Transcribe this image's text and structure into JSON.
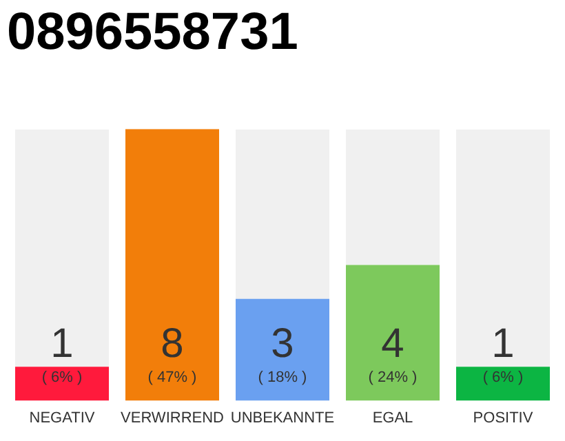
{
  "chart_data": {
    "type": "bar",
    "title": "0896558731",
    "categories": [
      "NEGATIV",
      "VERWIRREND",
      "UNBEKANNTE",
      "EGAL",
      "POSITIV"
    ],
    "values": [
      1,
      8,
      3,
      4,
      1
    ],
    "colors": [
      "#ff1a3c",
      "#f27e0a",
      "#6aa0f0",
      "#7dc95c",
      "#0cb543"
    ],
    "data_labels": true,
    "annotations": [
      {
        "text": "( 6% )",
        "x": "NEGATIV",
        "y": 0
      },
      {
        "text": "( 47% )",
        "x": "VERWIRREND",
        "y": 0
      },
      {
        "text": "( 18% )",
        "x": "UNBEKANNTE",
        "y": 0
      },
      {
        "text": "( 24% )",
        "x": "EGAL",
        "y": 0
      },
      {
        "text": "( 6% )",
        "x": "POSITIV",
        "y": 0
      }
    ],
    "grid": false,
    "legend": false
  }
}
